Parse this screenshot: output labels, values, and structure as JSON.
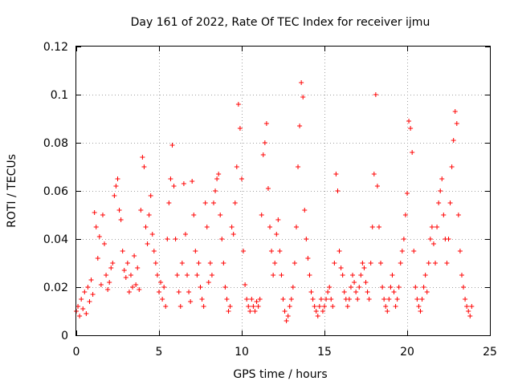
{
  "chart_data": {
    "type": "scatter",
    "title": "Day 161 of 2022, Rate Of TEC Index for receiver ijmu",
    "xlabel": "GPS time / hours",
    "ylabel": "ROTI / TECUs",
    "xlim": [
      0,
      25
    ],
    "ylim": [
      0,
      0.12
    ],
    "xticks": [
      0,
      5,
      10,
      15,
      20,
      25
    ],
    "xtick_labels": [
      "0",
      "5",
      "10",
      "15",
      "20",
      "25"
    ],
    "yticks": [
      0,
      0.02,
      0.04,
      0.06,
      0.08,
      0.1,
      0.12
    ],
    "ytick_labels": [
      "0",
      "0.02",
      "0.04",
      "0.06",
      "0.08",
      "0.1",
      "0.12"
    ],
    "grid": true,
    "marker": "+",
    "color": "#ff0000",
    "series": [
      {
        "name": "ROTI",
        "points": [
          [
            0.0,
            0.01
          ],
          [
            0.1,
            0.012
          ],
          [
            0.2,
            0.008
          ],
          [
            0.3,
            0.015
          ],
          [
            0.4,
            0.011
          ],
          [
            0.5,
            0.018
          ],
          [
            0.6,
            0.009
          ],
          [
            0.7,
            0.02
          ],
          [
            0.8,
            0.014
          ],
          [
            0.9,
            0.023
          ],
          [
            1.0,
            0.017
          ],
          [
            1.1,
            0.051
          ],
          [
            1.2,
            0.045
          ],
          [
            1.3,
            0.032
          ],
          [
            1.4,
            0.041
          ],
          [
            1.5,
            0.021
          ],
          [
            1.6,
            0.05
          ],
          [
            1.7,
            0.038
          ],
          [
            1.8,
            0.025
          ],
          [
            1.9,
            0.019
          ],
          [
            2.0,
            0.022
          ],
          [
            2.1,
            0.028
          ],
          [
            2.2,
            0.03
          ],
          [
            2.3,
            0.058
          ],
          [
            2.4,
            0.062
          ],
          [
            2.5,
            0.065
          ],
          [
            2.6,
            0.052
          ],
          [
            2.7,
            0.048
          ],
          [
            2.8,
            0.035
          ],
          [
            2.9,
            0.027
          ],
          [
            3.0,
            0.024
          ],
          [
            3.1,
            0.03
          ],
          [
            3.2,
            0.018
          ],
          [
            3.3,
            0.025
          ],
          [
            3.4,
            0.02
          ],
          [
            3.5,
            0.033
          ],
          [
            3.6,
            0.021
          ],
          [
            3.7,
            0.028
          ],
          [
            3.8,
            0.019
          ],
          [
            3.9,
            0.052
          ],
          [
            4.0,
            0.074
          ],
          [
            4.1,
            0.07
          ],
          [
            4.2,
            0.045
          ],
          [
            4.3,
            0.038
          ],
          [
            4.4,
            0.05
          ],
          [
            4.5,
            0.058
          ],
          [
            4.6,
            0.042
          ],
          [
            4.7,
            0.035
          ],
          [
            4.8,
            0.03
          ],
          [
            4.9,
            0.025
          ],
          [
            5.0,
            0.018
          ],
          [
            5.1,
            0.022
          ],
          [
            5.2,
            0.015
          ],
          [
            5.3,
            0.02
          ],
          [
            5.4,
            0.012
          ],
          [
            5.5,
            0.04
          ],
          [
            5.6,
            0.055
          ],
          [
            5.7,
            0.065
          ],
          [
            5.8,
            0.079
          ],
          [
            5.9,
            0.062
          ],
          [
            6.0,
            0.04
          ],
          [
            6.1,
            0.025
          ],
          [
            6.2,
            0.018
          ],
          [
            6.3,
            0.012
          ],
          [
            6.4,
            0.03
          ],
          [
            6.5,
            0.063
          ],
          [
            6.6,
            0.042
          ],
          [
            6.7,
            0.025
          ],
          [
            6.8,
            0.018
          ],
          [
            6.9,
            0.014
          ],
          [
            7.0,
            0.064
          ],
          [
            7.1,
            0.05
          ],
          [
            7.2,
            0.035
          ],
          [
            7.3,
            0.025
          ],
          [
            7.4,
            0.03
          ],
          [
            7.5,
            0.02
          ],
          [
            7.6,
            0.015
          ],
          [
            7.7,
            0.012
          ],
          [
            7.8,
            0.055
          ],
          [
            7.9,
            0.045
          ],
          [
            8.0,
            0.022
          ],
          [
            8.1,
            0.03
          ],
          [
            8.2,
            0.025
          ],
          [
            8.3,
            0.055
          ],
          [
            8.4,
            0.06
          ],
          [
            8.5,
            0.065
          ],
          [
            8.6,
            0.067
          ],
          [
            8.7,
            0.05
          ],
          [
            8.8,
            0.04
          ],
          [
            8.9,
            0.03
          ],
          [
            9.0,
            0.02
          ],
          [
            9.1,
            0.015
          ],
          [
            9.2,
            0.01
          ],
          [
            9.3,
            0.012
          ],
          [
            9.4,
            0.045
          ],
          [
            9.5,
            0.042
          ],
          [
            9.6,
            0.055
          ],
          [
            9.7,
            0.07
          ],
          [
            9.8,
            0.096
          ],
          [
            9.9,
            0.086
          ],
          [
            10.0,
            0.065
          ],
          [
            10.1,
            0.035
          ],
          [
            10.2,
            0.021
          ],
          [
            10.3,
            0.015
          ],
          [
            10.4,
            0.012
          ],
          [
            10.5,
            0.01
          ],
          [
            10.6,
            0.015
          ],
          [
            10.7,
            0.012
          ],
          [
            10.8,
            0.01
          ],
          [
            10.9,
            0.014
          ],
          [
            11.0,
            0.012
          ],
          [
            11.1,
            0.015
          ],
          [
            11.2,
            0.05
          ],
          [
            11.3,
            0.075
          ],
          [
            11.4,
            0.08
          ],
          [
            11.5,
            0.088
          ],
          [
            11.6,
            0.061
          ],
          [
            11.7,
            0.045
          ],
          [
            11.8,
            0.035
          ],
          [
            11.9,
            0.025
          ],
          [
            12.0,
            0.03
          ],
          [
            12.1,
            0.042
          ],
          [
            12.2,
            0.048
          ],
          [
            12.3,
            0.035
          ],
          [
            12.4,
            0.025
          ],
          [
            12.5,
            0.015
          ],
          [
            12.6,
            0.01
          ],
          [
            12.7,
            0.006
          ],
          [
            12.8,
            0.008
          ],
          [
            12.9,
            0.012
          ],
          [
            13.0,
            0.015
          ],
          [
            13.1,
            0.02
          ],
          [
            13.2,
            0.03
          ],
          [
            13.3,
            0.045
          ],
          [
            13.4,
            0.07
          ],
          [
            13.5,
            0.087
          ],
          [
            13.6,
            0.105
          ],
          [
            13.7,
            0.099
          ],
          [
            13.8,
            0.052
          ],
          [
            13.9,
            0.04
          ],
          [
            14.0,
            0.032
          ],
          [
            14.1,
            0.025
          ],
          [
            14.2,
            0.018
          ],
          [
            14.3,
            0.015
          ],
          [
            14.4,
            0.012
          ],
          [
            14.5,
            0.01
          ],
          [
            14.6,
            0.008
          ],
          [
            14.7,
            0.012
          ],
          [
            14.8,
            0.015
          ],
          [
            14.9,
            0.01
          ],
          [
            15.0,
            0.012
          ],
          [
            15.1,
            0.015
          ],
          [
            15.2,
            0.018
          ],
          [
            15.3,
            0.02
          ],
          [
            15.4,
            0.015
          ],
          [
            15.5,
            0.012
          ],
          [
            15.6,
            0.03
          ],
          [
            15.7,
            0.067
          ],
          [
            15.8,
            0.06
          ],
          [
            15.9,
            0.035
          ],
          [
            16.0,
            0.028
          ],
          [
            16.1,
            0.025
          ],
          [
            16.2,
            0.018
          ],
          [
            16.3,
            0.015
          ],
          [
            16.4,
            0.012
          ],
          [
            16.5,
            0.015
          ],
          [
            16.6,
            0.02
          ],
          [
            16.7,
            0.025
          ],
          [
            16.8,
            0.022
          ],
          [
            16.9,
            0.018
          ],
          [
            17.0,
            0.015
          ],
          [
            17.1,
            0.02
          ],
          [
            17.2,
            0.025
          ],
          [
            17.3,
            0.03
          ],
          [
            17.4,
            0.028
          ],
          [
            17.5,
            0.022
          ],
          [
            17.6,
            0.018
          ],
          [
            17.7,
            0.015
          ],
          [
            17.8,
            0.03
          ],
          [
            17.9,
            0.045
          ],
          [
            18.0,
            0.067
          ],
          [
            18.1,
            0.1
          ],
          [
            18.2,
            0.062
          ],
          [
            18.3,
            0.045
          ],
          [
            18.4,
            0.03
          ],
          [
            18.5,
            0.02
          ],
          [
            18.6,
            0.015
          ],
          [
            18.7,
            0.012
          ],
          [
            18.8,
            0.01
          ],
          [
            18.9,
            0.015
          ],
          [
            19.0,
            0.02
          ],
          [
            19.1,
            0.025
          ],
          [
            19.2,
            0.018
          ],
          [
            19.3,
            0.012
          ],
          [
            19.4,
            0.015
          ],
          [
            19.5,
            0.02
          ],
          [
            19.6,
            0.03
          ],
          [
            19.7,
            0.035
          ],
          [
            19.8,
            0.04
          ],
          [
            19.9,
            0.05
          ],
          [
            20.0,
            0.059
          ],
          [
            20.1,
            0.089
          ],
          [
            20.2,
            0.086
          ],
          [
            20.3,
            0.076
          ],
          [
            20.4,
            0.035
          ],
          [
            20.5,
            0.02
          ],
          [
            20.6,
            0.015
          ],
          [
            20.7,
            0.012
          ],
          [
            20.8,
            0.01
          ],
          [
            20.9,
            0.015
          ],
          [
            21.0,
            0.02
          ],
          [
            21.1,
            0.025
          ],
          [
            21.2,
            0.018
          ],
          [
            21.3,
            0.03
          ],
          [
            21.4,
            0.04
          ],
          [
            21.5,
            0.045
          ],
          [
            21.6,
            0.038
          ],
          [
            21.7,
            0.03
          ],
          [
            21.8,
            0.045
          ],
          [
            21.9,
            0.055
          ],
          [
            22.0,
            0.06
          ],
          [
            22.1,
            0.065
          ],
          [
            22.2,
            0.05
          ],
          [
            22.3,
            0.04
          ],
          [
            22.4,
            0.03
          ],
          [
            22.5,
            0.04
          ],
          [
            22.6,
            0.055
          ],
          [
            22.7,
            0.07
          ],
          [
            22.8,
            0.081
          ],
          [
            22.9,
            0.093
          ],
          [
            23.0,
            0.088
          ],
          [
            23.1,
            0.05
          ],
          [
            23.2,
            0.035
          ],
          [
            23.3,
            0.025
          ],
          [
            23.4,
            0.02
          ],
          [
            23.5,
            0.015
          ],
          [
            23.6,
            0.012
          ],
          [
            23.7,
            0.01
          ],
          [
            23.8,
            0.008
          ],
          [
            23.9,
            0.012
          ]
        ]
      }
    ]
  }
}
